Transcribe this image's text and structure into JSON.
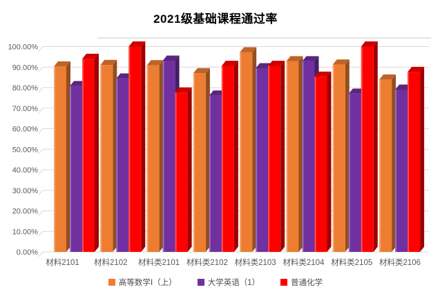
{
  "chart_data": {
    "type": "bar",
    "subtype": "3d-clustered-column",
    "title": "2021级基础课程通过率",
    "categories": [
      "材料2101",
      "材料2102",
      "材料类2101",
      "材料类2102",
      "材料类2103",
      "材料类2104",
      "材料类2105",
      "材料类2106"
    ],
    "series": [
      {
        "name": "高等数学Ⅰ（上）",
        "color": "#ED7D31",
        "values": [
          90.3,
          91.0,
          90.9,
          87.0,
          97.2,
          92.8,
          91.2,
          83.9
        ]
      },
      {
        "name": "大学英语（1）",
        "color": "#7030A0",
        "values": [
          80.7,
          84.4,
          93.1,
          76.1,
          89.4,
          92.8,
          77.0,
          79.0
        ]
      },
      {
        "name": "普通化学",
        "color": "#FF0000",
        "values": [
          94.0,
          100.0,
          77.6,
          90.6,
          90.6,
          85.3,
          100.0,
          87.6
        ]
      }
    ],
    "xlabel": "",
    "ylabel": "",
    "ylim": [
      0,
      100
    ],
    "ytick_step": 10,
    "ytick_labels": [
      "100.00%",
      "90.00%",
      "80.00%",
      "70.00%",
      "60.00%",
      "50.00%",
      "40.00%",
      "30.00%",
      "20.00%",
      "10.00%",
      "0.00%"
    ],
    "legend_position": "bottom",
    "grid": true,
    "grid_color": "#D9D9D9",
    "axis_text_color": "#595959",
    "title_color": "#000000"
  }
}
